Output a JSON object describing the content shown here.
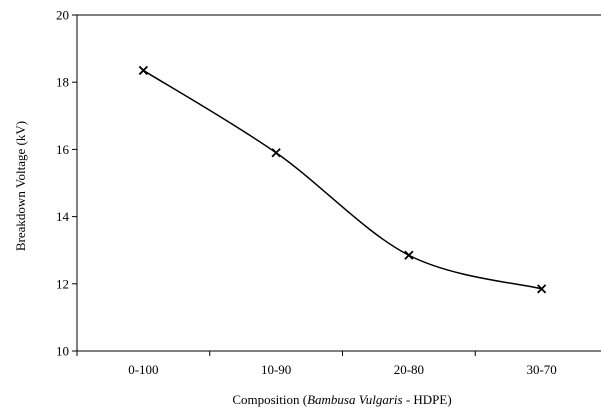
{
  "chart_data": {
    "type": "line",
    "categories": [
      "0-100",
      "10-90",
      "20-80",
      "30-70"
    ],
    "series": [
      {
        "values": [
          18.35,
          15.9,
          12.85,
          11.85
        ]
      }
    ],
    "xlabel_prefix": "Composition (",
    "xlabel_italic": "Bambusa Vulgaris",
    "xlabel_suffix": " - HDPE)",
    "ylabel": "Breakdown Voltage (kV)",
    "ylim": [
      10,
      20
    ],
    "yticks": [
      "10",
      "12",
      "14",
      "16",
      "18",
      "20"
    ],
    "marker": "x",
    "smooth": true,
    "grid": false,
    "line_color": "#000000"
  }
}
